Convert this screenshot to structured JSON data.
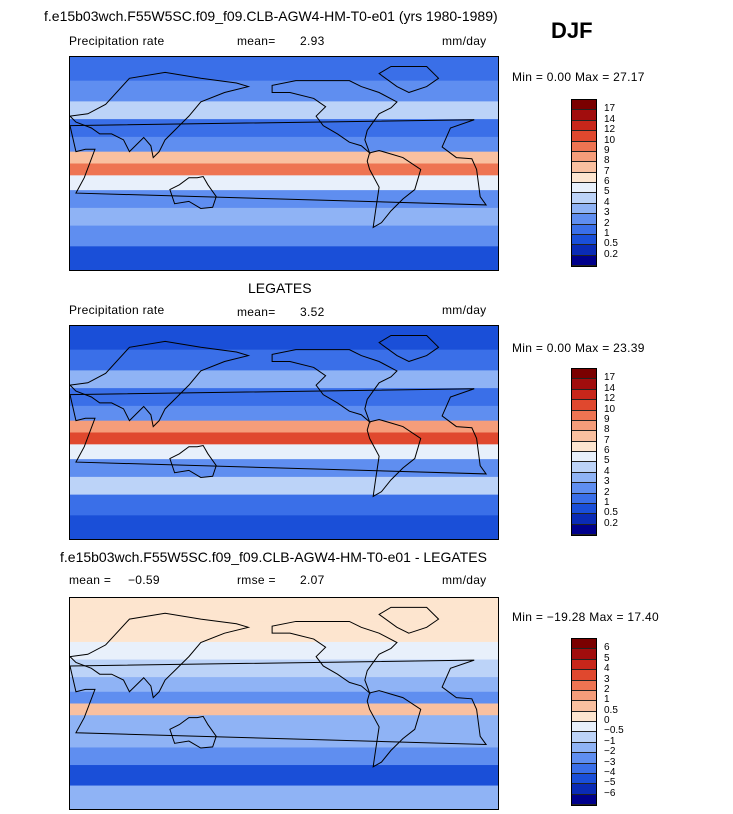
{
  "title": "f.e15b03wch.F55W5SC.f09_f09.CLB-AGW4-HM-T0-e01 (yrs 1980-1989)",
  "season": "DJF",
  "colors": {
    "precip": [
      "#00008b",
      "#0a2bb5",
      "#1a4fd8",
      "#3a6fe8",
      "#5f8ef0",
      "#8fb3f5",
      "#bcd3f8",
      "#e8f0fb",
      "#fde5cf",
      "#f9c0a0",
      "#f59d7a",
      "#ee7452",
      "#e0482e",
      "#c8261a",
      "#a10d0d",
      "#7a0000"
    ],
    "diff": [
      "#00008b",
      "#0a2bb5",
      "#1a4fd8",
      "#3a6fe8",
      "#5f8ef0",
      "#8fb3f5",
      "#bcd3f8",
      "#e8f0fb",
      "#fde5cf",
      "#f9c0a0",
      "#f59d7a",
      "#ee7452",
      "#e0482e",
      "#c8261a",
      "#a10d0d",
      "#7a0000"
    ]
  },
  "panels": [
    {
      "id": "model",
      "header_left": "Precipitation rate",
      "mean_label": "mean=",
      "mean_value": "2.93",
      "units": "mm/day",
      "minmax": "Min =    0.00 Max =  27.17",
      "levels": [
        "17",
        "14",
        "12",
        "10",
        "9",
        "8",
        "7",
        "6",
        "5",
        "4",
        "3",
        "2",
        "1",
        "0.5",
        "0.2"
      ],
      "bands": [
        {
          "lat": 80,
          "value": 2
        },
        {
          "lat": 60,
          "value": 3
        },
        {
          "lat": 45,
          "value": 5
        },
        {
          "lat": 30,
          "value": 2
        },
        {
          "lat": 15,
          "value": 3
        },
        {
          "lat": 5,
          "value": 8
        },
        {
          "lat": -5,
          "value": 10
        },
        {
          "lat": -15,
          "value": 6
        },
        {
          "lat": -30,
          "value": 3
        },
        {
          "lat": -45,
          "value": 4
        },
        {
          "lat": -60,
          "value": 3
        },
        {
          "lat": -80,
          "value": 1
        }
      ]
    },
    {
      "id": "obs",
      "subtitle": "LEGATES",
      "header_left": "Precipitation rate",
      "mean_label": "mean=",
      "mean_value": "3.52",
      "units": "mm/day",
      "minmax": "Min =    0.00 Max =  23.39",
      "levels": [
        "17",
        "14",
        "12",
        "10",
        "9",
        "8",
        "7",
        "6",
        "5",
        "4",
        "3",
        "2",
        "1",
        "0.5",
        "0.2"
      ],
      "bands": [
        {
          "lat": 80,
          "value": 1
        },
        {
          "lat": 60,
          "value": 2
        },
        {
          "lat": 45,
          "value": 4
        },
        {
          "lat": 30,
          "value": 2
        },
        {
          "lat": 15,
          "value": 3
        },
        {
          "lat": 5,
          "value": 9
        },
        {
          "lat": -5,
          "value": 12
        },
        {
          "lat": -15,
          "value": 6
        },
        {
          "lat": -30,
          "value": 3
        },
        {
          "lat": -45,
          "value": 5
        },
        {
          "lat": -60,
          "value": 2
        },
        {
          "lat": -80,
          "value": 1
        }
      ]
    },
    {
      "id": "diff",
      "title": "f.e15b03wch.F55W5SC.f09_f09.CLB-AGW4-HM-T0-e01 - LEGATES",
      "mean_label": "mean =",
      "mean_value": "−0.59",
      "rmse_label": "rmse =",
      "rmse_value": "2.07",
      "units": "mm/day",
      "minmax": "Min = −19.28 Max =  17.40",
      "levels": [
        "6",
        "5",
        "4",
        "3",
        "2",
        "1",
        "0.5",
        "0",
        "−0.5",
        "−1",
        "−2",
        "−3",
        "−4",
        "−5",
        "−6"
      ],
      "bands": [
        {
          "lat": 80,
          "value": 0.2
        },
        {
          "lat": 60,
          "value": 0.5
        },
        {
          "lat": 45,
          "value": 0
        },
        {
          "lat": 30,
          "value": -0.5
        },
        {
          "lat": 15,
          "value": -1
        },
        {
          "lat": 5,
          "value": -2
        },
        {
          "lat": -5,
          "value": 1
        },
        {
          "lat": -15,
          "value": -1
        },
        {
          "lat": -30,
          "value": -1
        },
        {
          "lat": -45,
          "value": -2
        },
        {
          "lat": -60,
          "value": -4
        },
        {
          "lat": -80,
          "value": -1
        }
      ]
    }
  ]
}
